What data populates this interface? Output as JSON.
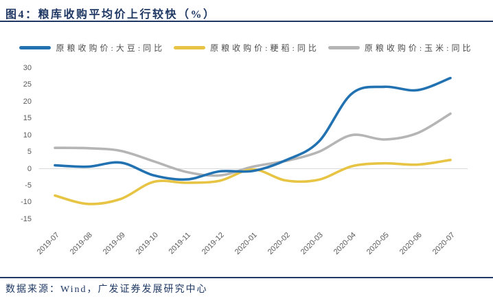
{
  "title": "图4：粮库收购平均价上行较快（%）",
  "footer": {
    "source_text": "数据来源：Wind，广发证券发展研究中心"
  },
  "colors": {
    "navy": "#1f3864",
    "soybean_blue": "#2272b2",
    "rice_yellow": "#e7c443",
    "corn_gray": "#b5b5b5",
    "zero_gridline": "#d9d9d9",
    "axis_text": "#595959",
    "legend_text": "#4d4d4d"
  },
  "chart_data": {
    "type": "line",
    "title": "图4：粮库收购平均价上行较快（%）",
    "unit": "%",
    "categories": [
      "2019-07",
      "2019-08",
      "2019-09",
      "2019-10",
      "2019-11",
      "2019-12",
      "2020-01",
      "2020-02",
      "2020-03",
      "2020-04",
      "2020-05",
      "2020-06",
      "2020-07"
    ],
    "series": [
      {
        "name": "原粮收购价:大豆:同比",
        "color_key": "soybean_blue",
        "values": [
          1.0,
          0.6,
          1.8,
          -2.0,
          -3.2,
          -0.8,
          -0.7,
          2.5,
          8.0,
          22.3,
          24.4,
          23.4,
          27.0
        ]
      },
      {
        "name": "原粮收购价:粳稻:同比",
        "color_key": "rice_yellow",
        "values": [
          -8.0,
          -10.5,
          -9.0,
          -3.9,
          -4.2,
          -3.6,
          -0.2,
          -3.5,
          -3.3,
          0.7,
          1.6,
          1.2,
          2.6
        ]
      },
      {
        "name": "原粮收购价:玉米:同比",
        "color_key": "corn_gray",
        "values": [
          6.2,
          6.1,
          5.3,
          2.2,
          -1.0,
          -2.0,
          0.6,
          2.3,
          5.0,
          10.0,
          8.7,
          10.6,
          16.4
        ]
      }
    ],
    "ylim": [
      -15,
      30
    ],
    "yticks": [
      30,
      25,
      20,
      15,
      10,
      5,
      0,
      -5,
      -10,
      -15
    ],
    "grid": "zero-line-only",
    "legend_position": "top-center"
  }
}
